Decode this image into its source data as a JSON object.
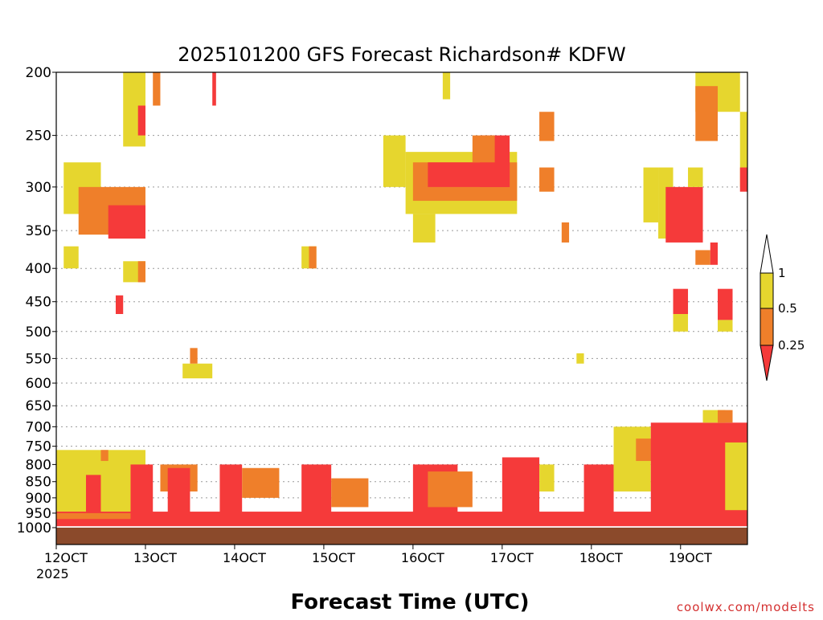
{
  "chart_data": {
    "type": "heatmap",
    "title": "2025101200 GFS Forecast Richardson# KDFW",
    "xlabel": "Forecast Time (UTC)",
    "ylabel": "",
    "credit": "coolwx.com/modelts",
    "x_ticks": [
      {
        "hour": 0,
        "label": "12OCT"
      },
      {
        "hour": 24,
        "label": "13OCT"
      },
      {
        "hour": 48,
        "label": "14OCT"
      },
      {
        "hour": 72,
        "label": "15OCT"
      },
      {
        "hour": 96,
        "label": "16OCT"
      },
      {
        "hour": 120,
        "label": "17OCT"
      },
      {
        "hour": 144,
        "label": "18OCT"
      },
      {
        "hour": 168,
        "label": "19OCT"
      }
    ],
    "x_year_label": "2025",
    "xlim_hours": [
      0,
      186
    ],
    "y_scale": "log",
    "ylim_hPa": [
      1000,
      200
    ],
    "y_ticks": [
      200,
      250,
      300,
      350,
      400,
      450,
      500,
      550,
      600,
      650,
      700,
      750,
      800,
      850,
      900,
      950,
      1000
    ],
    "grid": "dotted-horizontal",
    "legend": {
      "position": "right",
      "levels": [
        "1",
        "0.5",
        "0.25"
      ],
      "colors": {
        "above_1": "#ffffff",
        "0.5_to_1": "#e6d62e",
        "0.25_to_0.5": "#ef7f2a",
        "below_0.25": "#f53a3a"
      }
    },
    "colors": {
      "ground": "#8b4a2b",
      "red": "#f53a3a",
      "orange": "#ef7f2a",
      "yellow": "#e6d62e"
    },
    "ground_level_hPa": 1000,
    "regions": [
      {
        "c": "yellow",
        "t0": 0,
        "t1": 24,
        "p_top": 760,
        "p_bot": 965
      },
      {
        "c": "red",
        "t0": 8,
        "t1": 12,
        "p_top": 830,
        "p_bot": 990
      },
      {
        "c": "orange",
        "t0": 12,
        "t1": 14,
        "p_top": 760,
        "p_bot": 790
      },
      {
        "c": "red",
        "t0": 20,
        "t1": 26,
        "p_top": 800,
        "p_bot": 990
      },
      {
        "c": "orange",
        "t0": 28,
        "t1": 38,
        "p_top": 800,
        "p_bot": 880
      },
      {
        "c": "red",
        "t0": 30,
        "t1": 36,
        "p_top": 810,
        "p_bot": 990
      },
      {
        "c": "red",
        "t0": 44,
        "t1": 50,
        "p_top": 800,
        "p_bot": 985
      },
      {
        "c": "orange",
        "t0": 50,
        "t1": 60,
        "p_top": 810,
        "p_bot": 900
      },
      {
        "c": "red",
        "t0": 66,
        "t1": 74,
        "p_top": 800,
        "p_bot": 985
      },
      {
        "c": "orange",
        "t0": 74,
        "t1": 84,
        "p_top": 840,
        "p_bot": 930
      },
      {
        "c": "red",
        "t0": 96,
        "t1": 108,
        "p_top": 800,
        "p_bot": 985
      },
      {
        "c": "orange",
        "t0": 100,
        "t1": 112,
        "p_top": 820,
        "p_bot": 930
      },
      {
        "c": "red",
        "t0": 120,
        "t1": 130,
        "p_top": 780,
        "p_bot": 985
      },
      {
        "c": "yellow",
        "t0": 130,
        "t1": 134,
        "p_top": 800,
        "p_bot": 880
      },
      {
        "c": "red",
        "t0": 142,
        "t1": 150,
        "p_top": 800,
        "p_bot": 985
      },
      {
        "c": "yellow",
        "t0": 150,
        "t1": 160,
        "p_top": 700,
        "p_bot": 880
      },
      {
        "c": "orange",
        "t0": 156,
        "t1": 162,
        "p_top": 730,
        "p_bot": 790
      },
      {
        "c": "red",
        "t0": 160,
        "t1": 186,
        "p_top": 690,
        "p_bot": 985
      },
      {
        "c": "yellow",
        "t0": 180,
        "t1": 186,
        "p_top": 740,
        "p_bot": 940
      },
      {
        "c": "red",
        "t0": 0,
        "t1": 186,
        "p_top": 945,
        "p_bot": 995
      },
      {
        "c": "orange",
        "t0": 0,
        "t1": 20,
        "p_top": 950,
        "p_bot": 970
      },
      {
        "c": "yellow",
        "t0": 2,
        "t1": 12,
        "p_top": 275,
        "p_bot": 330
      },
      {
        "c": "orange",
        "t0": 6,
        "t1": 24,
        "p_top": 300,
        "p_bot": 355
      },
      {
        "c": "red",
        "t0": 14,
        "t1": 24,
        "p_top": 320,
        "p_bot": 360
      },
      {
        "c": "yellow",
        "t0": 18,
        "t1": 24,
        "p_top": 200,
        "p_bot": 260
      },
      {
        "c": "red",
        "t0": 22,
        "t1": 24,
        "p_top": 225,
        "p_bot": 250
      },
      {
        "c": "orange",
        "t0": 26,
        "t1": 28,
        "p_top": 200,
        "p_bot": 225
      },
      {
        "c": "red",
        "t0": 42,
        "t1": 43,
        "p_top": 200,
        "p_bot": 225
      },
      {
        "c": "yellow",
        "t0": 2,
        "t1": 6,
        "p_top": 370,
        "p_bot": 400
      },
      {
        "c": "yellow",
        "t0": 18,
        "t1": 24,
        "p_top": 390,
        "p_bot": 420
      },
      {
        "c": "orange",
        "t0": 22,
        "t1": 24,
        "p_top": 390,
        "p_bot": 420
      },
      {
        "c": "red",
        "t0": 16,
        "t1": 18,
        "p_top": 440,
        "p_bot": 470
      },
      {
        "c": "yellow",
        "t0": 34,
        "t1": 42,
        "p_top": 560,
        "p_bot": 590
      },
      {
        "c": "orange",
        "t0": 36,
        "t1": 38,
        "p_top": 530,
        "p_bot": 560
      },
      {
        "c": "yellow",
        "t0": 66,
        "t1": 70,
        "p_top": 370,
        "p_bot": 400
      },
      {
        "c": "orange",
        "t0": 68,
        "t1": 70,
        "p_top": 370,
        "p_bot": 400
      },
      {
        "c": "yellow",
        "t0": 88,
        "t1": 94,
        "p_top": 250,
        "p_bot": 300
      },
      {
        "c": "yellow",
        "t0": 94,
        "t1": 124,
        "p_top": 265,
        "p_bot": 330
      },
      {
        "c": "orange",
        "t0": 96,
        "t1": 124,
        "p_top": 275,
        "p_bot": 315
      },
      {
        "c": "red",
        "t0": 100,
        "t1": 122,
        "p_top": 275,
        "p_bot": 300
      },
      {
        "c": "red",
        "t0": 114,
        "t1": 122,
        "p_top": 250,
        "p_bot": 300
      },
      {
        "c": "orange",
        "t0": 112,
        "t1": 118,
        "p_top": 250,
        "p_bot": 275
      },
      {
        "c": "yellow",
        "t0": 96,
        "t1": 102,
        "p_top": 330,
        "p_bot": 365
      },
      {
        "c": "yellow",
        "t0": 104,
        "t1": 106,
        "p_top": 200,
        "p_bot": 220
      },
      {
        "c": "orange",
        "t0": 130,
        "t1": 134,
        "p_top": 230,
        "p_bot": 255
      },
      {
        "c": "orange",
        "t0": 130,
        "t1": 134,
        "p_top": 280,
        "p_bot": 305
      },
      {
        "c": "orange",
        "t0": 136,
        "t1": 138,
        "p_top": 340,
        "p_bot": 365
      },
      {
        "c": "yellow",
        "t0": 158,
        "t1": 162,
        "p_top": 280,
        "p_bot": 340
      },
      {
        "c": "yellow",
        "t0": 162,
        "t1": 166,
        "p_top": 280,
        "p_bot": 360
      },
      {
        "c": "red",
        "t0": 164,
        "t1": 174,
        "p_top": 300,
        "p_bot": 365
      },
      {
        "c": "yellow",
        "t0": 170,
        "t1": 174,
        "p_top": 280,
        "p_bot": 300
      },
      {
        "c": "yellow",
        "t0": 172,
        "t1": 184,
        "p_top": 200,
        "p_bot": 230
      },
      {
        "c": "orange",
        "t0": 172,
        "t1": 178,
        "p_top": 210,
        "p_bot": 255
      },
      {
        "c": "yellow",
        "t0": 184,
        "t1": 186,
        "p_top": 230,
        "p_bot": 300
      },
      {
        "c": "red",
        "t0": 184,
        "t1": 186,
        "p_top": 280,
        "p_bot": 305
      },
      {
        "c": "orange",
        "t0": 172,
        "t1": 176,
        "p_top": 375,
        "p_bot": 395
      },
      {
        "c": "red",
        "t0": 176,
        "t1": 178,
        "p_top": 365,
        "p_bot": 395
      },
      {
        "c": "red",
        "t0": 166,
        "t1": 170,
        "p_top": 430,
        "p_bot": 470
      },
      {
        "c": "yellow",
        "t0": 166,
        "t1": 170,
        "p_top": 470,
        "p_bot": 500
      },
      {
        "c": "red",
        "t0": 178,
        "t1": 182,
        "p_top": 430,
        "p_bot": 480
      },
      {
        "c": "yellow",
        "t0": 178,
        "t1": 182,
        "p_top": 480,
        "p_bot": 500
      },
      {
        "c": "yellow",
        "t0": 174,
        "t1": 180,
        "p_top": 660,
        "p_bot": 690
      },
      {
        "c": "orange",
        "t0": 178,
        "t1": 182,
        "p_top": 660,
        "p_bot": 690
      },
      {
        "c": "yellow",
        "t0": 140,
        "t1": 142,
        "p_top": 540,
        "p_bot": 560
      }
    ]
  }
}
